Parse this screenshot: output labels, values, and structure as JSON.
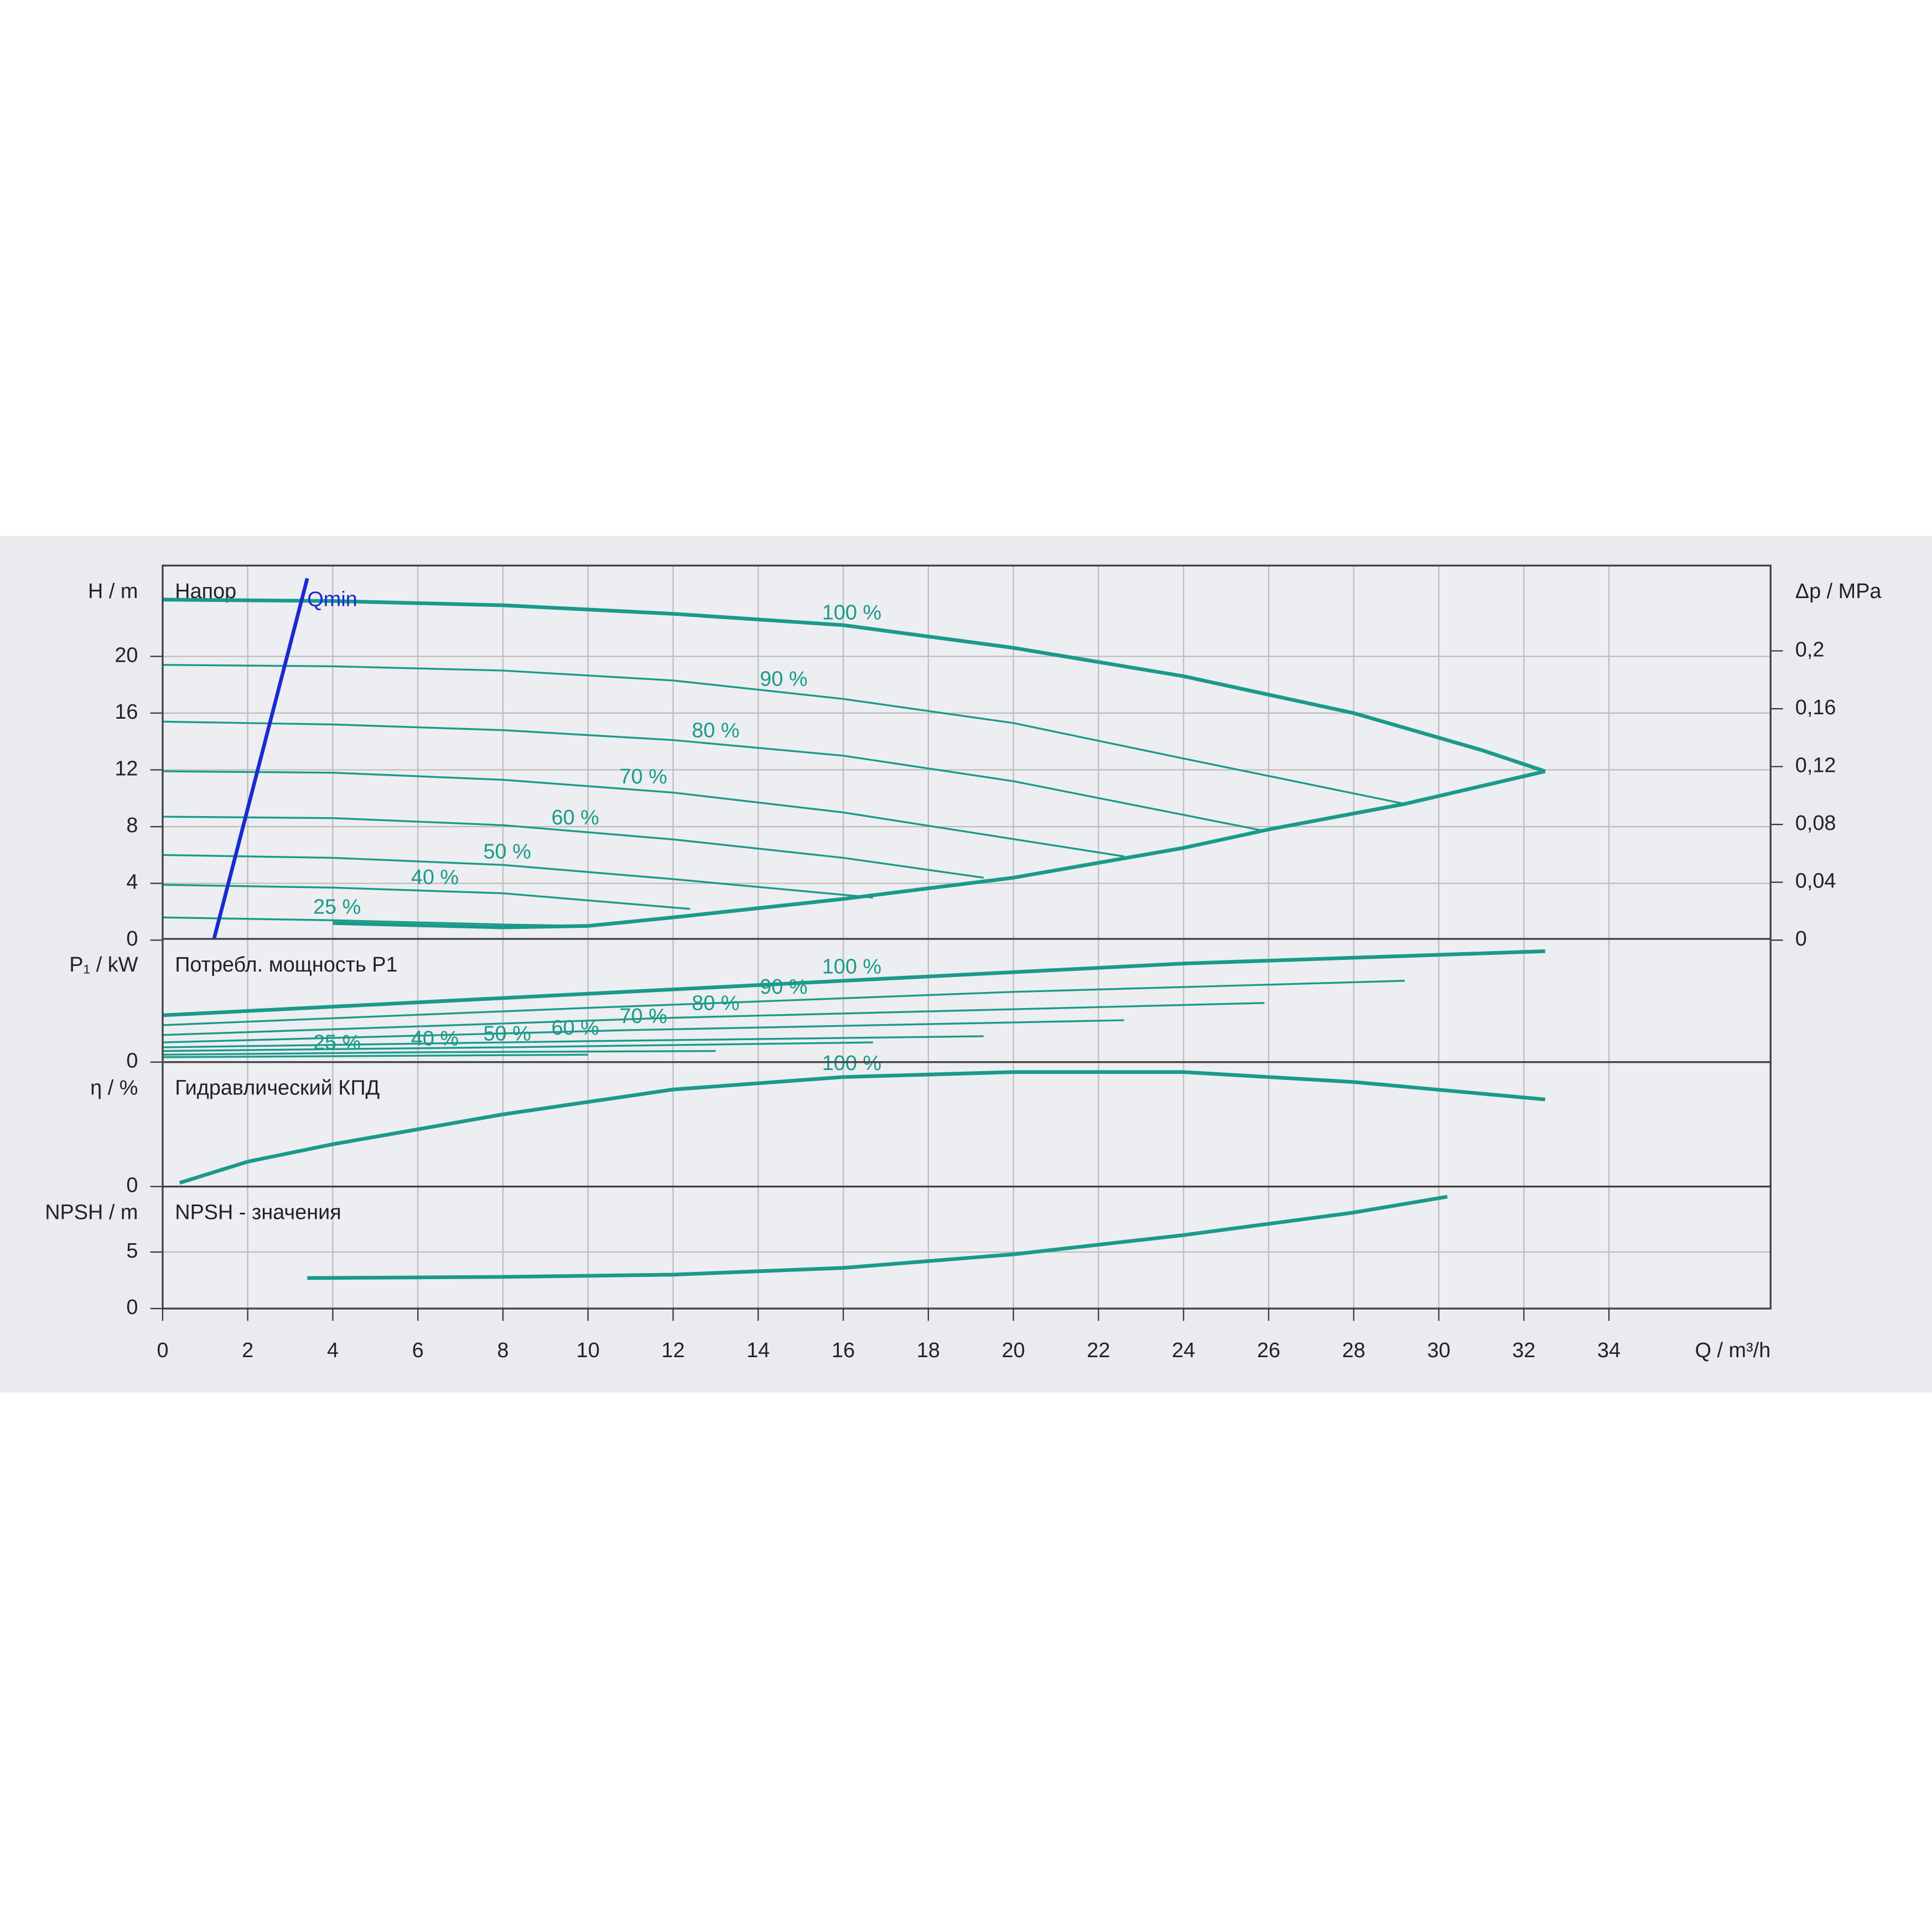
{
  "chart_data": [
    {
      "type": "line",
      "title": "Напор",
      "ylabel": "H / m",
      "y2label": "Δp / MPa",
      "xlim": [
        0,
        37.8
      ],
      "ylim": [
        0,
        26.4
      ],
      "yticks": [
        0,
        4,
        8,
        12,
        16,
        20
      ],
      "y2lim": [
        0,
        0.259
      ],
      "y2ticks": [
        0,
        {
          "value": 0.04,
          "label": "0,04"
        },
        {
          "value": 0.08,
          "label": "0,08"
        },
        {
          "value": 0.12,
          "label": "0,12"
        },
        {
          "value": 0.16,
          "label": "0,16"
        },
        {
          "value": 0.2,
          "label": "0,2"
        }
      ],
      "grid": true,
      "series": [
        {
          "name": "100 %",
          "color": "#1a9a8a",
          "width": 3,
          "x": [
            0,
            4,
            8,
            12,
            16,
            20,
            24,
            28,
            31,
            32.5
          ],
          "values": [
            24.0,
            23.9,
            23.6,
            23.0,
            22.2,
            20.6,
            18.6,
            16.0,
            13.4,
            11.9
          ]
        },
        {
          "name": "90 %",
          "color": "#1a9a8a",
          "width": 1.5,
          "x": [
            0,
            4,
            8,
            12,
            16,
            20,
            24,
            29.2
          ],
          "values": [
            19.4,
            19.3,
            19.0,
            18.3,
            17.0,
            15.3,
            12.8,
            9.6
          ]
        },
        {
          "name": "80 %",
          "color": "#1a9a8a",
          "width": 1.5,
          "x": [
            0,
            4,
            8,
            12,
            16,
            20,
            25.9
          ],
          "values": [
            15.4,
            15.2,
            14.8,
            14.1,
            13.0,
            11.2,
            7.7
          ]
        },
        {
          "name": "70 %",
          "color": "#1a9a8a",
          "width": 1.5,
          "x": [
            0,
            4,
            8,
            12,
            16,
            22.6
          ],
          "values": [
            11.9,
            11.8,
            11.3,
            10.4,
            9.0,
            5.9
          ]
        },
        {
          "name": "60 %",
          "color": "#1a9a8a",
          "width": 1.5,
          "x": [
            0,
            4,
            8,
            12,
            16,
            19.3
          ],
          "values": [
            8.7,
            8.6,
            8.1,
            7.1,
            5.8,
            4.4
          ]
        },
        {
          "name": "50 %",
          "color": "#1a9a8a",
          "width": 1.5,
          "x": [
            0,
            4,
            8,
            12,
            16.7
          ],
          "values": [
            6.0,
            5.8,
            5.3,
            4.3,
            3.0
          ]
        },
        {
          "name": "40 %",
          "color": "#1a9a8a",
          "width": 1.5,
          "x": [
            0,
            4,
            8,
            12.4
          ],
          "values": [
            3.9,
            3.7,
            3.3,
            2.2
          ]
        },
        {
          "name": "25 %",
          "color": "#1a9a8a",
          "width": 1.5,
          "x": [
            0,
            4,
            8,
            10
          ],
          "values": [
            1.6,
            1.4,
            1.1,
            1.0
          ]
        },
        {
          "color": "#1a9a8a",
          "width": 3,
          "x": [
            4,
            8,
            10,
            12,
            16,
            20,
            24,
            26,
            29.2,
            32.5
          ],
          "values": [
            1.2,
            0.9,
            1.0,
            1.6,
            2.9,
            4.4,
            6.5,
            7.8,
            9.6,
            11.9
          ]
        },
        {
          "name": "Qmin",
          "color": "#1a2ad0",
          "width": 3,
          "x": [
            1.2,
            3.4
          ],
          "values": [
            0,
            25.5
          ]
        }
      ]
    },
    {
      "type": "line",
      "title": "Потребл. мощность P1",
      "ylabel": "P₁ / kW",
      "xlim": [
        0,
        37.8
      ],
      "ylim": [
        0,
        1
      ],
      "yticks": [
        0
      ],
      "grid": true,
      "series": [
        {
          "name": "100 %",
          "color": "#1a9a8a",
          "width": 3,
          "x": [
            0,
            8,
            16,
            24,
            32.5
          ],
          "values": [
            0.38,
            0.52,
            0.66,
            0.8,
            0.9
          ]
        },
        {
          "name": "90 %",
          "color": "#1a9a8a",
          "width": 1.5,
          "x": [
            0,
            10,
            20,
            29.2
          ],
          "values": [
            0.3,
            0.44,
            0.57,
            0.66
          ]
        },
        {
          "name": "80 %",
          "color": "#1a9a8a",
          "width": 1.5,
          "x": [
            0,
            12,
            25.9
          ],
          "values": [
            0.22,
            0.36,
            0.48
          ]
        },
        {
          "name": "70 %",
          "color": "#1a9a8a",
          "width": 1.5,
          "x": [
            0,
            11,
            22.6
          ],
          "values": [
            0.16,
            0.26,
            0.34
          ]
        },
        {
          "name": "60 %",
          "color": "#1a9a8a",
          "width": 1.5,
          "x": [
            0,
            10,
            19.3
          ],
          "values": [
            0.12,
            0.17,
            0.21
          ]
        },
        {
          "name": "50 %",
          "color": "#1a9a8a",
          "width": 1.5,
          "x": [
            0,
            8,
            16.7
          ],
          "values": [
            0.09,
            0.12,
            0.16
          ]
        },
        {
          "name": "40 %",
          "color": "#1a9a8a",
          "width": 1.5,
          "x": [
            0,
            6,
            13
          ],
          "values": [
            0.06,
            0.08,
            0.09
          ]
        },
        {
          "name": "25 %",
          "color": "#1a9a8a",
          "width": 1.5,
          "x": [
            0,
            5,
            10
          ],
          "values": [
            0.04,
            0.05,
            0.06
          ]
        }
      ]
    },
    {
      "type": "line",
      "title": "Гидравлический КПД",
      "ylabel": "η / %",
      "xlim": [
        0,
        37.8
      ],
      "ylim": [
        0,
        1
      ],
      "yticks": [
        0
      ],
      "grid": true,
      "series": [
        {
          "name": "100 %",
          "color": "#1a9a8a",
          "width": 3,
          "x": [
            0.4,
            2,
            4,
            8,
            12,
            16,
            20,
            24,
            28,
            32.5
          ],
          "values": [
            0.03,
            0.2,
            0.34,
            0.58,
            0.78,
            0.88,
            0.92,
            0.92,
            0.84,
            0.7
          ]
        }
      ]
    },
    {
      "type": "line",
      "title": "NPSH - значения",
      "ylabel": "NPSH / m",
      "xlabel": "Q / m³/h",
      "xlim": [
        0,
        37.8
      ],
      "ylim": [
        0,
        10.8
      ],
      "yticks": [
        0,
        5
      ],
      "xticks": [
        0,
        2,
        4,
        6,
        8,
        10,
        12,
        14,
        16,
        18,
        20,
        22,
        24,
        26,
        28,
        30,
        32,
        34
      ],
      "grid": true,
      "series": [
        {
          "color": "#1a9a8a",
          "width": 3,
          "x": [
            3.4,
            8,
            12,
            16,
            20,
            24,
            28,
            30.2
          ],
          "values": [
            2.7,
            2.8,
            3.0,
            3.6,
            4.8,
            6.5,
            8.5,
            9.9
          ]
        }
      ]
    }
  ]
}
